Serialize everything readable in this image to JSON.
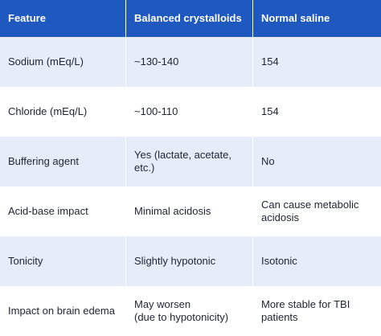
{
  "table": {
    "headers": [
      "Feature",
      "Balanced crystalloids",
      "Normal saline"
    ],
    "rows": [
      [
        "Sodium (mEq/L)",
        "~130-140",
        "154"
      ],
      [
        "Chloride (mEq/L)",
        "~100-110",
        "154"
      ],
      [
        "Buffering agent",
        "Yes (lactate, acetate, etc.)",
        "No"
      ],
      [
        "Acid-base impact",
        "Minimal acidosis",
        "Can cause metabolic\nacidosis"
      ],
      [
        "Tonicity",
        "Slightly hypotonic",
        "Isotonic"
      ],
      [
        "Impact on brain edema",
        "May worsen\n(due to hypotonicity)",
        "More stable for TBI\npatients"
      ]
    ]
  },
  "colors": {
    "header_background": "#1f58bf",
    "header_text": "#ffffff",
    "row_alt_background": "#e6edf8",
    "row_background": "#ffffff",
    "body_text": "#1e2430"
  }
}
